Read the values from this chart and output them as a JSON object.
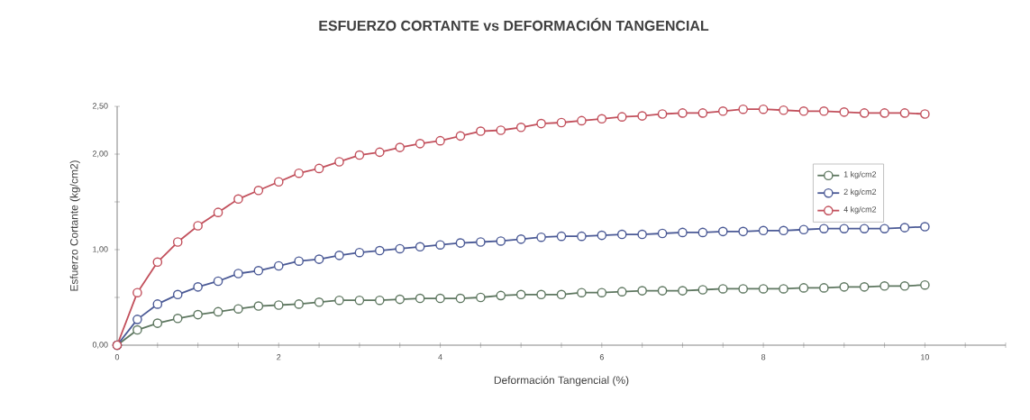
{
  "chart_data": {
    "type": "line",
    "title": "ESFUERZO CORTANTE vs DEFORMACIÓN TANGENCIAL",
    "xlabel": "Deformación  Tangencial (%)",
    "ylabel": "Esfuerzo Cortante (kg/cm2)",
    "x": [
      0,
      0.25,
      0.5,
      0.75,
      1,
      1.25,
      1.5,
      1.75,
      2,
      2.25,
      2.5,
      2.75,
      3,
      3.25,
      3.5,
      3.75,
      4,
      4.25,
      4.5,
      4.75,
      5,
      5.25,
      5.5,
      5.75,
      6,
      6.25,
      6.5,
      6.75,
      7,
      7.25,
      7.5,
      7.75,
      8,
      8.25,
      8.5,
      8.75,
      9,
      9.25,
      9.5,
      9.75,
      10
    ],
    "series": [
      {
        "name": "1 kg/cm2",
        "color": "#5e7760",
        "values": [
          0,
          0.16,
          0.23,
          0.28,
          0.32,
          0.35,
          0.38,
          0.41,
          0.42,
          0.43,
          0.45,
          0.47,
          0.47,
          0.47,
          0.48,
          0.49,
          0.49,
          0.49,
          0.5,
          0.52,
          0.53,
          0.53,
          0.53,
          0.55,
          0.55,
          0.56,
          0.57,
          0.57,
          0.57,
          0.58,
          0.59,
          0.59,
          0.59,
          0.59,
          0.6,
          0.6,
          0.61,
          0.61,
          0.62,
          0.62,
          0.63
        ]
      },
      {
        "name": "2 kg/cm2",
        "color": "#4b5a96",
        "values": [
          0,
          0.27,
          0.43,
          0.53,
          0.61,
          0.67,
          0.75,
          0.78,
          0.83,
          0.88,
          0.9,
          0.94,
          0.97,
          0.99,
          1.01,
          1.03,
          1.05,
          1.07,
          1.08,
          1.09,
          1.11,
          1.13,
          1.14,
          1.14,
          1.15,
          1.16,
          1.16,
          1.17,
          1.18,
          1.18,
          1.19,
          1.19,
          1.2,
          1.2,
          1.21,
          1.22,
          1.22,
          1.22,
          1.22,
          1.23,
          1.24
        ]
      },
      {
        "name": "4 kg/cm2",
        "color": "#c2505c",
        "values": [
          0,
          0.55,
          0.87,
          1.08,
          1.25,
          1.39,
          1.53,
          1.62,
          1.71,
          1.8,
          1.85,
          1.92,
          1.99,
          2.02,
          2.07,
          2.11,
          2.14,
          2.19,
          2.24,
          2.25,
          2.28,
          2.32,
          2.33,
          2.35,
          2.37,
          2.39,
          2.4,
          2.42,
          2.43,
          2.43,
          2.45,
          2.47,
          2.47,
          2.46,
          2.45,
          2.45,
          2.44,
          2.43,
          2.43,
          2.43,
          2.42
        ]
      }
    ],
    "xlim": [
      0,
      11
    ],
    "ylim": [
      0,
      2.5
    ],
    "xticks": [
      0,
      {
        "value": 0.5,
        "label": null
      },
      {
        "value": 1,
        "label": null
      },
      {
        "value": 1.5,
        "label": null
      },
      2,
      {
        "value": 2.5,
        "label": null
      },
      {
        "value": 3,
        "label": null
      },
      {
        "value": 3.5,
        "label": null
      },
      4,
      {
        "value": 4.5,
        "label": null
      },
      {
        "value": 5,
        "label": null
      },
      {
        "value": 5.5,
        "label": null
      },
      6,
      {
        "value": 6.5,
        "label": null
      },
      {
        "value": 7,
        "label": null
      },
      {
        "value": 7.5,
        "label": null
      },
      8,
      {
        "value": 8.5,
        "label": null
      },
      {
        "value": 9,
        "label": null
      },
      {
        "value": 9.5,
        "label": null
      },
      10,
      {
        "value": 10.5,
        "label": null
      },
      {
        "value": 11,
        "label": null
      }
    ],
    "yticks": [
      {
        "value": 0,
        "label": "0,00"
      },
      {
        "value": 0.5,
        "label": null
      },
      {
        "value": 1,
        "label": "1,00"
      },
      {
        "value": 1.5,
        "label": null
      },
      {
        "value": 2,
        "label": "2,00"
      },
      {
        "value": 2.5,
        "label": "2,50"
      }
    ],
    "legend": "top right",
    "marker": "circle",
    "line_style": "solid",
    "grid": false
  }
}
